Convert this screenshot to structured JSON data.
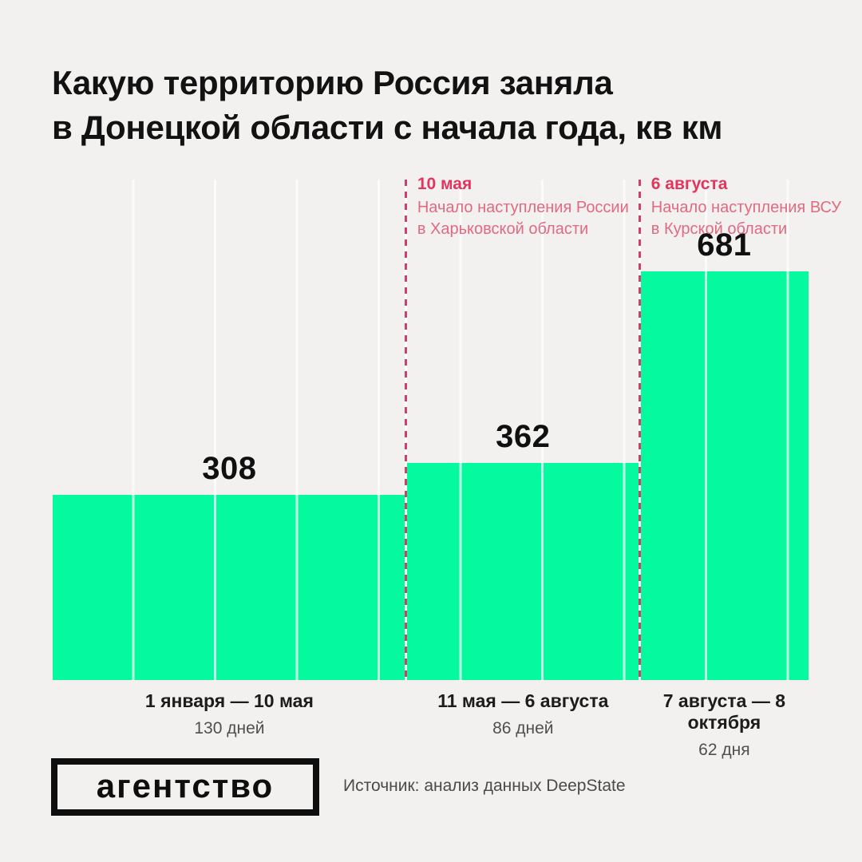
{
  "header": {
    "title_line1": "Какую территорию Россия заняла",
    "title_line2": "в Донецкой области с начала года, кв км"
  },
  "chart_data": {
    "type": "bar",
    "title": "Какую территорию Россия заняла в Донецкой области с начала года, кв км",
    "value_unit": "кв км",
    "grid": true,
    "bar_color": "#05f99e",
    "annotation_color": "#e2355e",
    "dash_line_color": "#cb4266",
    "bars": [
      {
        "value": 308,
        "days": 130,
        "period": "1 января — 10 мая",
        "duration_label": "130 дней"
      },
      {
        "value": 362,
        "days": 86,
        "period": "11 мая — 6 августа",
        "duration_label": "86 дней"
      },
      {
        "value": 681,
        "days": 62,
        "period": "7 августа — 8 октября",
        "duration_label": "62 дня"
      }
    ],
    "annotations": [
      {
        "after_bar": 0,
        "date": "10 мая",
        "lines": [
          "Начало наступления России",
          "в Харьковской области"
        ]
      },
      {
        "after_bar": 1,
        "date": "6 августа",
        "lines": [
          "Начало наступления ВСУ",
          "в Курской области"
        ]
      }
    ]
  },
  "footer": {
    "logo_text": "агентство",
    "source": "Источник: анализ данных DeepState"
  }
}
